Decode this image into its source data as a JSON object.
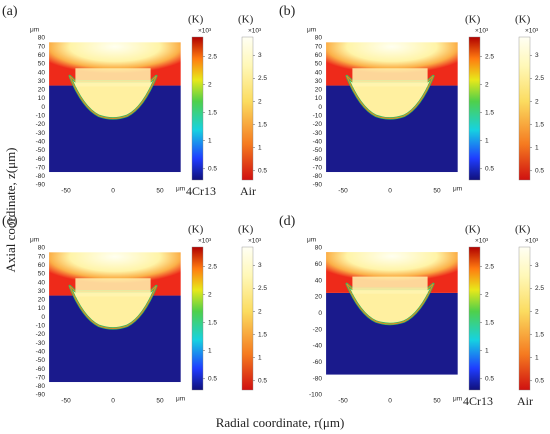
{
  "y_axis_title": "Axial coordinate, z(μm)",
  "x_axis_title": "Radial coordinate, r(μm)",
  "panels": [
    {
      "label": "(a)",
      "yticks": [
        80,
        70,
        60,
        50,
        40,
        30,
        20,
        10,
        0,
        -10,
        -20,
        -30,
        -40,
        -50,
        -60,
        -70,
        -80,
        -90
      ],
      "xticks": [
        -50,
        0,
        50
      ],
      "x_unit": "μm",
      "y_unit": "μm",
      "colorbars": [
        {
          "unit": "(K)",
          "scale": "×10³",
          "ticks": [
            0.5,
            1,
            1.5,
            2,
            2.5
          ],
          "material": "4Cr13"
        },
        {
          "unit": "(K)",
          "scale": "×10³",
          "ticks": [
            0.5,
            1,
            1.5,
            2,
            2.5,
            3
          ],
          "material": "Air"
        }
      ]
    },
    {
      "label": "(b)",
      "yticks": [
        80,
        70,
        60,
        50,
        40,
        30,
        20,
        10,
        0,
        -10,
        -20,
        -30,
        -40,
        -50,
        -60,
        -70,
        -80,
        -90
      ],
      "xticks": [
        -50,
        0,
        50
      ],
      "x_unit": "μm",
      "y_unit": "μm",
      "colorbars": [
        {
          "unit": "(K)",
          "scale": "×10³",
          "ticks": [
            0.5,
            1,
            1.5,
            2,
            2.5
          ]
        },
        {
          "unit": "(K)",
          "scale": "×10³",
          "ticks": [
            0.5,
            1,
            1.5,
            2,
            2.5,
            3
          ]
        }
      ]
    },
    {
      "label": "(c)",
      "yticks": [
        80,
        70,
        60,
        50,
        40,
        30,
        20,
        10,
        0,
        -10,
        -20,
        -30,
        -40,
        -50,
        -60,
        -70,
        -80,
        -90
      ],
      "xticks": [
        -50,
        0,
        50
      ],
      "x_unit": "μm",
      "y_unit": "μm",
      "colorbars": [
        {
          "unit": "(K)",
          "scale": "×10³",
          "ticks": [
            0.5,
            1,
            1.5,
            2,
            2.5
          ]
        },
        {
          "unit": "(K)",
          "scale": "×10³",
          "ticks": [
            0.5,
            1,
            1.5,
            2,
            2.5,
            3
          ]
        }
      ]
    },
    {
      "label": "(d)",
      "yticks": [
        80,
        60,
        40,
        20,
        0,
        -20,
        -40,
        -60,
        -80,
        -100
      ],
      "xticks": [
        -50,
        0,
        50
      ],
      "x_unit": "μm",
      "y_unit": "μm",
      "colorbars": [
        {
          "unit": "(K)",
          "scale": "×10³",
          "ticks": [
            0.5,
            1,
            1.5,
            2,
            2.5
          ],
          "material": "4Cr13"
        },
        {
          "unit": "(K)",
          "scale": "×10³",
          "ticks": [
            0.5,
            1,
            1.5,
            2,
            2.5,
            3
          ],
          "material": "Air"
        }
      ]
    }
  ]
}
